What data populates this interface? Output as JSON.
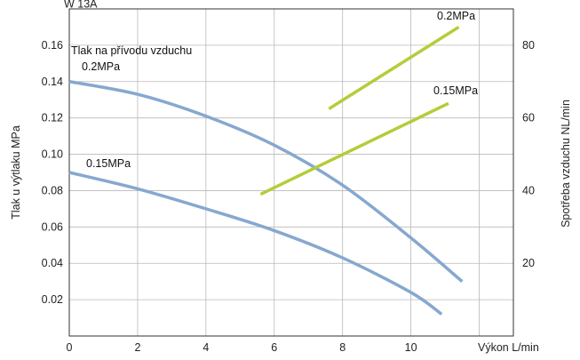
{
  "chart_data": {
    "type": "line",
    "title": "",
    "top_cutoff_text": "W 13A",
    "xlabel": "Výkon  L/min",
    "ylabel_left": "Tlak u výtlaku  MPa",
    "ylabel_right": "Spotřeba vzduchu  NL/min",
    "xlim": [
      0,
      13
    ],
    "ylim_left": [
      0,
      0.18
    ],
    "ylim_right": [
      0,
      90
    ],
    "x_ticks": [
      "0",
      "2",
      "4",
      "6",
      "8",
      "10"
    ],
    "y_left_ticks": [
      "0.02",
      "0.04",
      "0.06",
      "0.08",
      "0.10",
      "0.12",
      "0.14",
      "0.16"
    ],
    "y_right_ticks": [
      "20",
      "40",
      "60",
      "80"
    ],
    "grid": true,
    "colors": {
      "pressure": "#86a8cf",
      "consumption": "#b5cc39"
    },
    "legend_heading": "Tlak na přívodu vzduchu",
    "series": [
      {
        "name": "0.2MPa",
        "kind": "pressure",
        "axis": "left",
        "x": [
          0,
          2,
          4,
          6,
          8,
          10,
          11.5
        ],
        "y": [
          0.14,
          0.133,
          0.121,
          0.105,
          0.083,
          0.054,
          0.03
        ]
      },
      {
        "name": "0.15MPa",
        "kind": "pressure",
        "axis": "left",
        "x": [
          0,
          2,
          4,
          6,
          8,
          10,
          10.9
        ],
        "y": [
          0.09,
          0.081,
          0.07,
          0.058,
          0.043,
          0.024,
          0.012
        ]
      },
      {
        "name": "0.2MPa",
        "kind": "consumption",
        "axis": "right",
        "x": [
          7.6,
          11.4
        ],
        "y": [
          62.5,
          85
        ]
      },
      {
        "name": "0.15MPa",
        "kind": "consumption",
        "axis": "right",
        "x": [
          5.6,
          11.1
        ],
        "y": [
          39,
          64
        ]
      }
    ]
  }
}
